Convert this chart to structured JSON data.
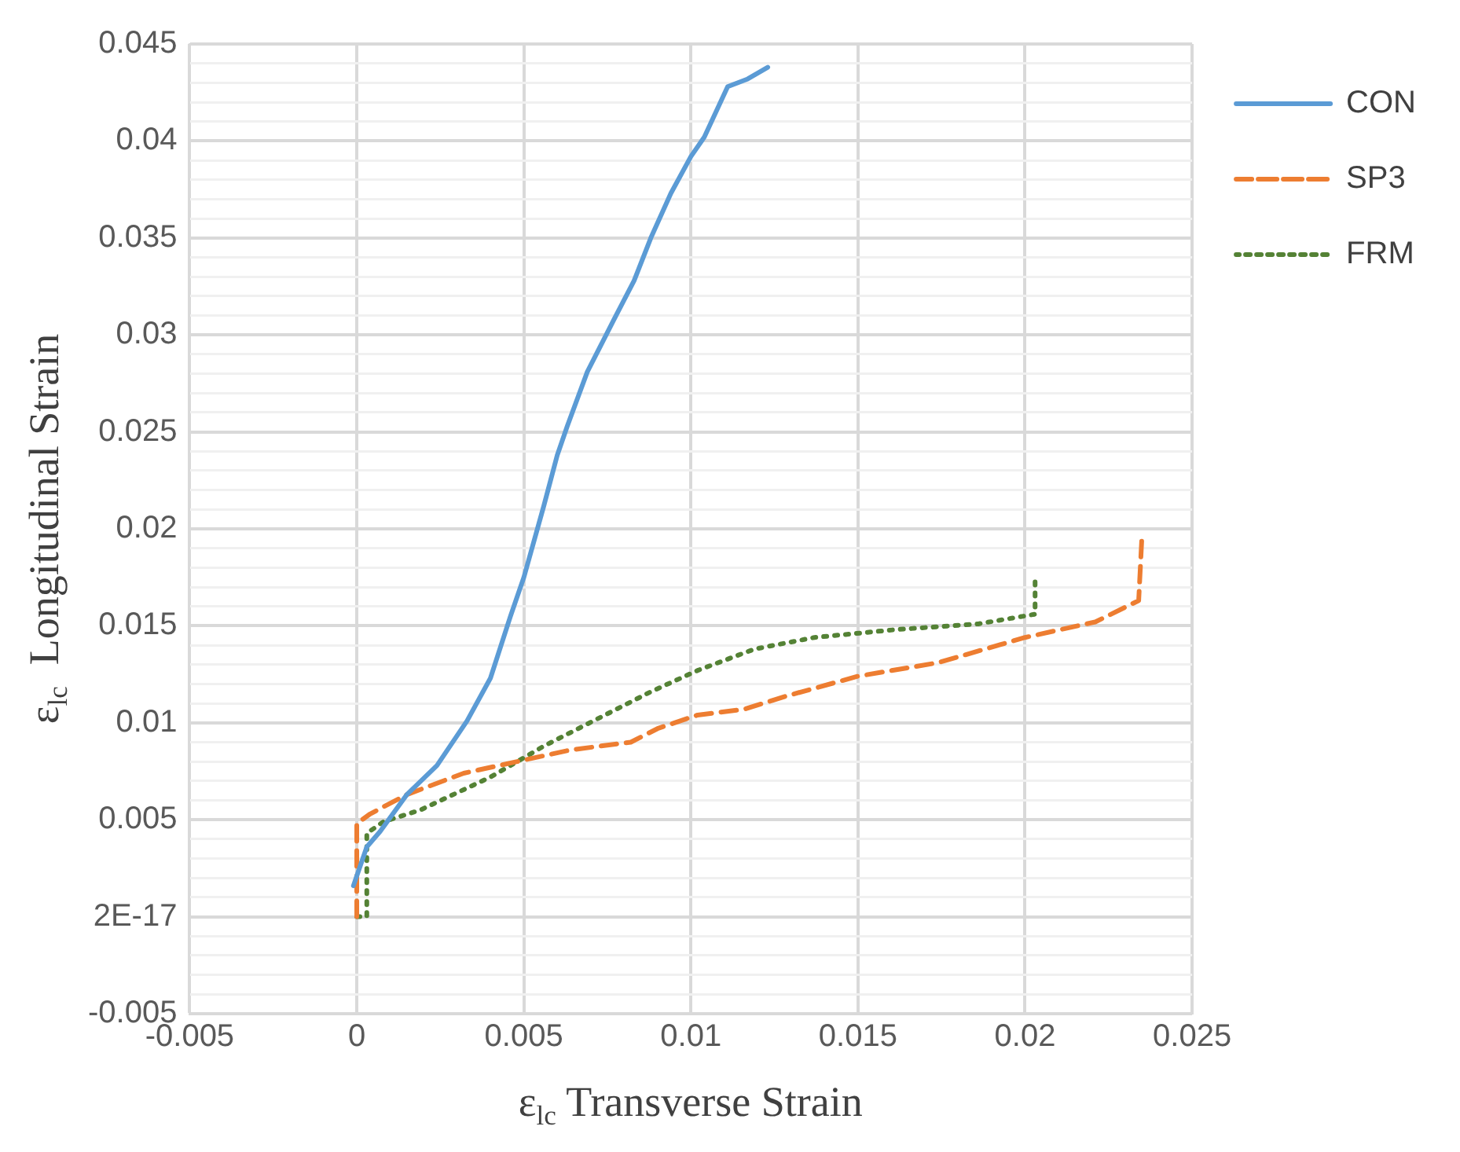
{
  "chart_data": {
    "type": "line",
    "xlabel": "ε$_{lc}$ Transverse Strain",
    "ylabel": "ε$_{lc}$  Longitudinal Strain",
    "xlim": [
      -0.005,
      0.025
    ],
    "xticks": [
      -0.005,
      0,
      0.005,
      0.01,
      0.015,
      0.02,
      0.025
    ],
    "ylim": [
      -0.005,
      0.045
    ],
    "yticks": [
      -0.005,
      {
        "value": -0.004,
        "label": null
      },
      {
        "value": -0.003,
        "label": null
      },
      {
        "value": -0.002,
        "label": null
      },
      {
        "value": -0.001,
        "label": null
      },
      {
        "value": 0,
        "label": "2E-17"
      },
      {
        "value": 0.001,
        "label": null
      },
      {
        "value": 0.002,
        "label": null
      },
      {
        "value": 0.003,
        "label": null
      },
      {
        "value": 0.004,
        "label": null
      },
      0.005,
      {
        "value": 0.006,
        "label": null
      },
      {
        "value": 0.007,
        "label": null
      },
      {
        "value": 0.008,
        "label": null
      },
      {
        "value": 0.009,
        "label": null
      },
      0.01,
      {
        "value": 0.011,
        "label": null
      },
      {
        "value": 0.012,
        "label": null
      },
      {
        "value": 0.013,
        "label": null
      },
      {
        "value": 0.014,
        "label": null
      },
      0.015,
      {
        "value": 0.016,
        "label": null
      },
      {
        "value": 0.017,
        "label": null
      },
      {
        "value": 0.018,
        "label": null
      },
      {
        "value": 0.019,
        "label": null
      },
      0.02,
      {
        "value": 0.021,
        "label": null
      },
      {
        "value": 0.022,
        "label": null
      },
      {
        "value": 0.023,
        "label": null
      },
      {
        "value": 0.024,
        "label": null
      },
      0.025,
      {
        "value": 0.026,
        "label": null
      },
      {
        "value": 0.027,
        "label": null
      },
      {
        "value": 0.028,
        "label": null
      },
      {
        "value": 0.029,
        "label": null
      },
      0.03,
      {
        "value": 0.031,
        "label": null
      },
      {
        "value": 0.032,
        "label": null
      },
      {
        "value": 0.033,
        "label": null
      },
      {
        "value": 0.034,
        "label": null
      },
      0.035,
      {
        "value": 0.036,
        "label": null
      },
      {
        "value": 0.037,
        "label": null
      },
      {
        "value": 0.038,
        "label": null
      },
      {
        "value": 0.039,
        "label": null
      },
      0.04,
      {
        "value": 0.041,
        "label": null
      },
      {
        "value": 0.042,
        "label": null
      },
      {
        "value": 0.043,
        "label": null
      },
      {
        "value": 0.044,
        "label": null
      },
      0.045
    ],
    "grid": true,
    "legend": "top right",
    "marker": "none",
    "series": [
      {
        "name": "CON",
        "color": "#5b9bd5",
        "line_style": "solid",
        "x": [
          -0.0001,
          0,
          0.0003,
          0.0007,
          0.0015,
          0.0024,
          0.0033,
          0.004,
          0.0046,
          0.005,
          0.0056,
          0.006,
          0.0063,
          0.0069,
          0.0077,
          0.0083,
          0.0088,
          0.0094,
          0.01,
          0.0104,
          0.0111,
          0.0117,
          0.0123
        ],
        "values": [
          0.0016,
          0.0021,
          0.0036,
          0.0044,
          0.0063,
          0.0078,
          0.0101,
          0.0123,
          0.0155,
          0.0175,
          0.0212,
          0.0238,
          0.0253,
          0.0281,
          0.0308,
          0.0328,
          0.035,
          0.0373,
          0.0392,
          0.0402,
          0.0428,
          0.0432,
          0.0438
        ]
      },
      {
        "name": "SP3",
        "color": "#ed7d31",
        "line_style": "dashed",
        "x": [
          0,
          0,
          0.0004,
          0.0015,
          0.0032,
          0.0048,
          0.0064,
          0.0082,
          0.009,
          0.0102,
          0.0116,
          0.0129,
          0.015,
          0.0174,
          0.02,
          0.0221,
          0.0234,
          0.0235
        ],
        "values": [
          0,
          0.0048,
          0.0053,
          0.0063,
          0.0074,
          0.008,
          0.0086,
          0.009,
          0.0097,
          0.0104,
          0.0107,
          0.0114,
          0.0124,
          0.0131,
          0.0144,
          0.0152,
          0.0163,
          0.0197
        ]
      },
      {
        "name": "FRM",
        "color": "#548235",
        "line_style": "dotted",
        "x": [
          0,
          0.0003,
          0.0003,
          0.0008,
          0.0019,
          0.004,
          0.0056,
          0.0072,
          0.0088,
          0.0102,
          0.0119,
          0.0137,
          0.0161,
          0.0186,
          0.0203,
          0.0203
        ],
        "values": [
          0,
          0,
          0.0043,
          0.0049,
          0.0055,
          0.0072,
          0.0088,
          0.0102,
          0.0116,
          0.0127,
          0.0138,
          0.0144,
          0.0148,
          0.0151,
          0.0156,
          0.0173
        ]
      }
    ]
  }
}
